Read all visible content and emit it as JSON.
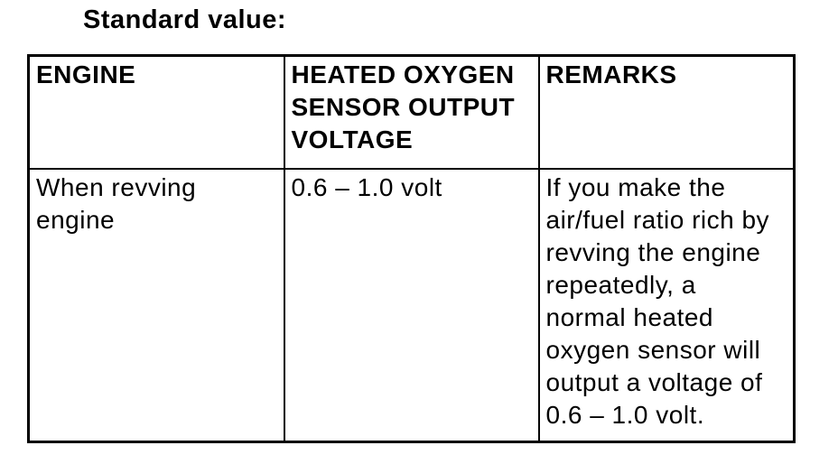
{
  "title": "Standard value:",
  "table": {
    "headers": [
      "ENGINE",
      "HEATED OXYGEN\nSENSOR OUTPUT\nVOLTAGE",
      "REMARKS"
    ],
    "rows": [
      {
        "engine": "When revving\nengine",
        "voltage": "0.6 – 1.0 volt",
        "remarks": "If you make the\nair/fuel ratio rich by\nrevving the engine\nrepeatedly, a\nnormal heated\noxygen sensor will\noutput a voltage of\n0.6 – 1.0 volt."
      }
    ]
  },
  "colors": {
    "text": "#000000",
    "border": "#000000",
    "background": "#ffffff"
  }
}
